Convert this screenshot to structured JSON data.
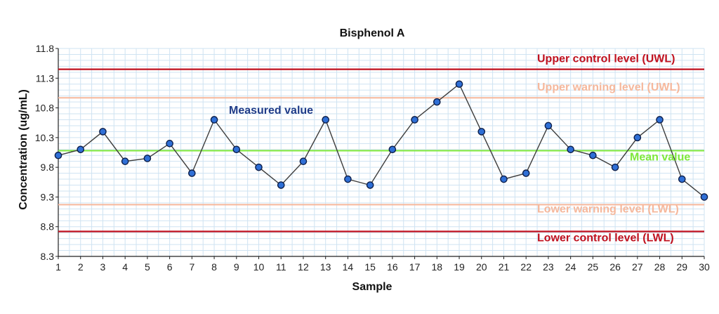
{
  "chart_data": {
    "type": "line",
    "title": "Bisphenol A",
    "xlabel": "Sample",
    "ylabel": "Concentration (ug/mL)",
    "ylim": [
      8.3,
      11.8
    ],
    "yticks": [
      "8.3",
      "8.8",
      "9.3",
      "9.8",
      "10.3",
      "10.8",
      "11.3",
      "11.8"
    ],
    "xlim": [
      1,
      30
    ],
    "grid": true,
    "x": [
      1,
      2,
      3,
      4,
      5,
      6,
      7,
      8,
      9,
      10,
      11,
      12,
      13,
      14,
      15,
      16,
      17,
      18,
      19,
      20,
      21,
      22,
      23,
      24,
      25,
      26,
      27,
      28,
      29,
      30
    ],
    "series": [
      {
        "name": "Measured value",
        "values": [
          10.0,
          10.1,
          10.4,
          9.9,
          9.95,
          10.2,
          9.7,
          10.6,
          10.1,
          9.8,
          9.5,
          9.9,
          10.6,
          9.6,
          9.5,
          10.1,
          10.6,
          10.9,
          11.2,
          10.4,
          9.6,
          9.7,
          10.5,
          10.1,
          10.0,
          9.8,
          10.3,
          10.6,
          9.6,
          9.3
        ]
      }
    ],
    "reference_lines": [
      {
        "name": "upper-control",
        "label": "Upper control level (UWL)",
        "value": 11.45,
        "color": "#c0111f"
      },
      {
        "name": "upper-warning",
        "label": "Upper warning level (UWL)",
        "value": 10.97,
        "color": "#f6b89c"
      },
      {
        "name": "mean",
        "label": "Mean value",
        "value": 10.08,
        "color": "#7ee83a"
      },
      {
        "name": "lower-warning",
        "label": "Lower warning level (LWL)",
        "value": 9.17,
        "color": "#f6b89c"
      },
      {
        "name": "lower-control",
        "label": "Lower control level (LWL)",
        "value": 8.72,
        "color": "#c0111f"
      }
    ],
    "annotations": [
      {
        "text": "Measured value",
        "color": "#1f3c88"
      }
    ]
  },
  "colors": {
    "grid": "#cfe3f2",
    "line": "#3d3d3d",
    "marker_fill": "#2f6fd6",
    "marker_stroke": "#0d1f4a",
    "axis": "#222222"
  }
}
